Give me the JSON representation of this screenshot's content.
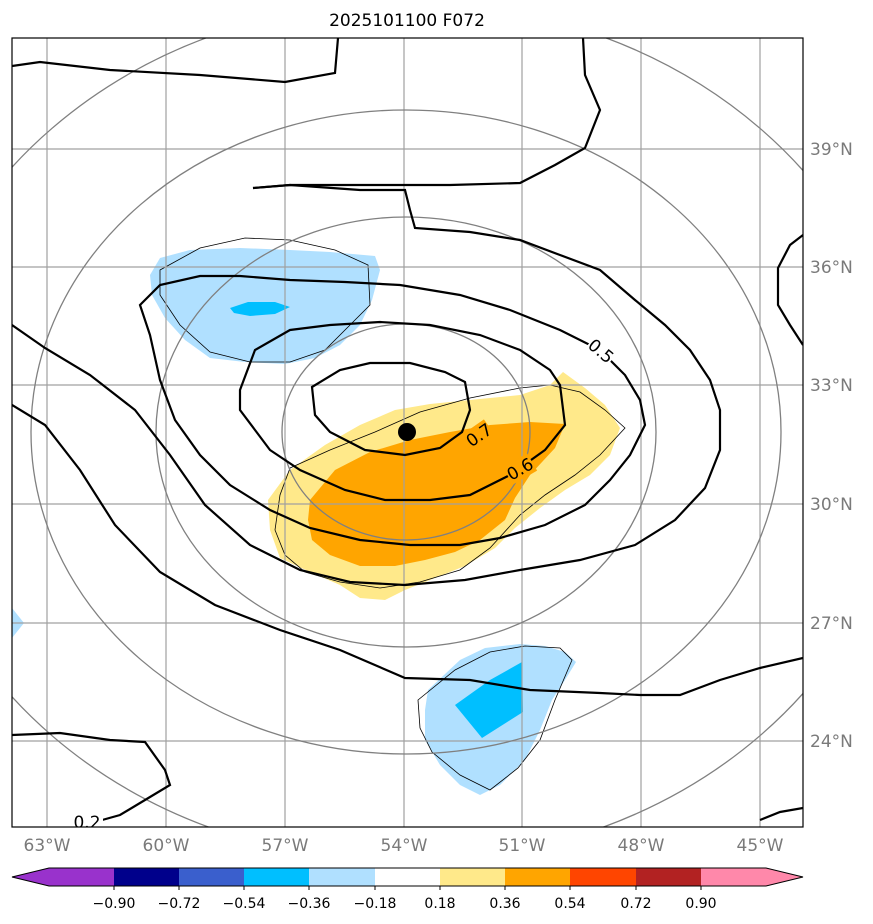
{
  "title": "2025101100 F072",
  "map": {
    "lon_labels": [
      "63°W",
      "60°W",
      "57°W",
      "54°W",
      "51°W",
      "48°W",
      "45°W"
    ],
    "lat_labels": [
      "39°N",
      "36°N",
      "33°N",
      "30°N",
      "27°N",
      "24°N"
    ],
    "contour_labels": [
      "0.7",
      "0.6",
      "0.5",
      "0.2"
    ],
    "storm_center": {
      "lon": "54°W",
      "lat": "31.8°N"
    }
  },
  "colorbar": {
    "ticks": [
      "−0.90",
      "−0.72",
      "−0.54",
      "−0.36",
      "−0.18",
      "0.18",
      "0.36",
      "0.54",
      "0.72",
      "0.90"
    ],
    "colors": [
      "#9932cc",
      "#00008b",
      "#3a5fcd",
      "#00bfff",
      "#b0e0ff",
      "#ffffff",
      "#ffe98a",
      "#ffa500",
      "#ff4500",
      "#b22222",
      "#ff88aa"
    ]
  },
  "colors": {
    "grid": "#a0a0a0",
    "range_rings": "#808080",
    "contour": "#000000",
    "light_blue": "#b0e0ff",
    "blue": "#00bfff",
    "light_yellow": "#ffe98a",
    "orange": "#ffa500"
  }
}
